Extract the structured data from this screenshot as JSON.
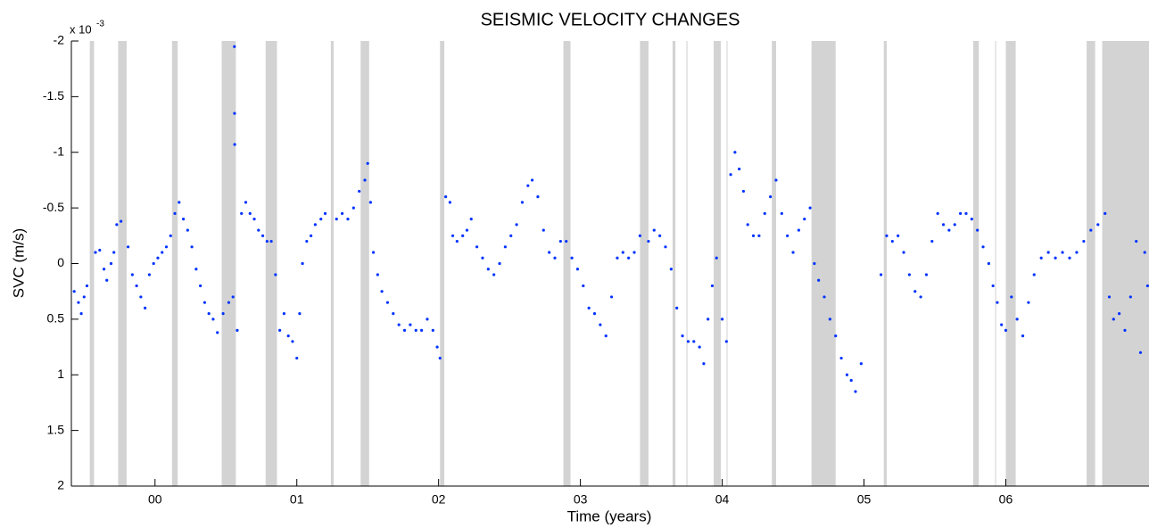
{
  "chart_data": {
    "type": "scatter",
    "title": "SEISMIC VELOCITY CHANGES",
    "x_label": "Time (years)",
    "y_label": "SVC (m/s)",
    "y_scale_label": {
      "base": "x 10",
      "exponent": "-3"
    },
    "color": "#0033ff",
    "gap_color": "#d3d3d3",
    "y_inverted": true,
    "xlim": [
      1999.41,
      2007.01
    ],
    "ylim": [
      -2,
      2
    ],
    "xticks": [
      {
        "value": 2000,
        "label": "00"
      },
      {
        "value": 2001,
        "label": "01"
      },
      {
        "value": 2002,
        "label": "02"
      },
      {
        "value": 2003,
        "label": "03"
      },
      {
        "value": 2004,
        "label": "04"
      },
      {
        "value": 2005,
        "label": "05"
      },
      {
        "value": 2006,
        "label": "06"
      }
    ],
    "yticks": [
      -2,
      -1.5,
      -1,
      -0.5,
      0,
      0.5,
      1,
      1.5,
      2
    ],
    "gaps": [
      [
        1999.54,
        1999.57
      ],
      [
        1999.74,
        1999.8
      ],
      [
        2000.12,
        2000.16
      ],
      [
        2000.47,
        2000.57
      ],
      [
        2000.78,
        2000.86
      ],
      [
        2001.24,
        2001.26
      ],
      [
        2001.45,
        2001.51
      ],
      [
        2002.01,
        2002.04
      ],
      [
        2002.88,
        2002.93
      ],
      [
        2003.42,
        2003.48
      ],
      [
        2003.65,
        2003.67
      ],
      [
        2003.748,
        2003.755
      ],
      [
        2003.94,
        2003.99
      ],
      [
        2004.031,
        2004.036
      ],
      [
        2004.35,
        2004.38
      ],
      [
        2004.63,
        2004.8
      ],
      [
        2005.14,
        2005.16
      ],
      [
        2005.77,
        2005.81
      ],
      [
        2005.925,
        2005.931
      ],
      [
        2006.0,
        2006.07
      ],
      [
        2006.57,
        2006.63
      ],
      [
        2006.68,
        2007.01
      ]
    ],
    "x": [
      1999.43,
      1999.46,
      1999.48,
      1999.5,
      1999.52,
      1999.58,
      1999.61,
      1999.64,
      1999.66,
      1999.69,
      1999.71,
      1999.73,
      1999.76,
      1999.81,
      1999.84,
      1999.87,
      1999.9,
      1999.93,
      1999.96,
      1999.99,
      2000.02,
      2000.05,
      2000.08,
      2000.11,
      2000.14,
      2000.17,
      2000.2,
      2000.23,
      2000.26,
      2000.29,
      2000.32,
      2000.35,
      2000.38,
      2000.41,
      2000.44,
      2000.48,
      2000.52,
      2000.55,
      2000.56,
      2000.561,
      2000.562,
      2000.58,
      2000.61,
      2000.64,
      2000.67,
      2000.7,
      2000.73,
      2000.76,
      2000.79,
      2000.82,
      2000.85,
      2000.88,
      2000.91,
      2000.94,
      2000.97,
      2001.0,
      2001.02,
      2001.04,
      2001.07,
      2001.1,
      2001.13,
      2001.17,
      2001.2,
      2001.28,
      2001.32,
      2001.36,
      2001.4,
      2001.44,
      2001.48,
      2001.5,
      2001.52,
      2001.54,
      2001.57,
      2001.6,
      2001.64,
      2001.68,
      2001.72,
      2001.76,
      2001.8,
      2001.84,
      2001.88,
      2001.92,
      2001.96,
      2001.99,
      2002.01,
      2002.05,
      2002.08,
      2002.1,
      2002.13,
      2002.17,
      2002.2,
      2002.23,
      2002.27,
      2002.31,
      2002.35,
      2002.39,
      2002.43,
      2002.47,
      2002.51,
      2002.55,
      2002.59,
      2002.63,
      2002.66,
      2002.7,
      2002.74,
      2002.78,
      2002.82,
      2002.86,
      2002.9,
      2002.94,
      2002.98,
      2003.02,
      2003.06,
      2003.1,
      2003.14,
      2003.18,
      2003.22,
      2003.26,
      2003.3,
      2003.34,
      2003.38,
      2003.42,
      2003.48,
      2003.52,
      2003.56,
      2003.6,
      2003.64,
      2003.68,
      2003.72,
      2003.76,
      2003.8,
      2003.84,
      2003.87,
      2003.9,
      2003.93,
      2003.96,
      2004.0,
      2004.03,
      2004.06,
      2004.09,
      2004.12,
      2004.15,
      2004.18,
      2004.22,
      2004.26,
      2004.3,
      2004.34,
      2004.38,
      2004.42,
      2004.46,
      2004.5,
      2004.54,
      2004.58,
      2004.62,
      2004.65,
      2004.68,
      2004.72,
      2004.76,
      2004.8,
      2004.84,
      2004.88,
      2004.91,
      2004.94,
      2004.98,
      2005.12,
      2005.16,
      2005.2,
      2005.24,
      2005.28,
      2005.32,
      2005.36,
      2005.4,
      2005.44,
      2005.48,
      2005.52,
      2005.56,
      2005.6,
      2005.64,
      2005.68,
      2005.72,
      2005.76,
      2005.8,
      2005.84,
      2005.88,
      2005.91,
      2005.94,
      2005.97,
      2006.0,
      2006.04,
      2006.08,
      2006.12,
      2006.16,
      2006.2,
      2006.25,
      2006.3,
      2006.35,
      2006.4,
      2006.45,
      2006.5,
      2006.55,
      2006.6,
      2006.65,
      2006.7,
      2006.73,
      2006.76,
      2006.8,
      2006.84,
      2006.88,
      2006.92,
      2006.95,
      2006.98,
      2007.0
    ],
    "values": [
      0.25,
      0.35,
      0.45,
      0.3,
      0.2,
      -0.1,
      -0.12,
      0.05,
      0.15,
      0.0,
      -0.1,
      -0.35,
      -0.38,
      -0.15,
      0.1,
      0.2,
      0.3,
      0.4,
      0.1,
      0.0,
      -0.05,
      -0.1,
      -0.15,
      -0.25,
      -0.45,
      -0.55,
      -0.4,
      -0.3,
      -0.15,
      0.05,
      0.2,
      0.35,
      0.45,
      0.5,
      0.62,
      0.45,
      0.35,
      0.3,
      -1.95,
      -1.35,
      -1.07,
      0.6,
      -0.45,
      -0.55,
      -0.45,
      -0.4,
      -0.3,
      -0.25,
      -0.2,
      -0.2,
      0.1,
      0.6,
      0.45,
      0.65,
      0.7,
      0.85,
      0.45,
      0.0,
      -0.2,
      -0.25,
      -0.35,
      -0.4,
      -0.45,
      -0.4,
      -0.45,
      -0.4,
      -0.5,
      -0.65,
      -0.75,
      -0.9,
      -0.55,
      -0.1,
      0.1,
      0.25,
      0.35,
      0.45,
      0.55,
      0.6,
      0.55,
      0.6,
      0.6,
      0.5,
      0.6,
      0.75,
      0.85,
      -0.6,
      -0.55,
      -0.25,
      -0.2,
      -0.25,
      -0.3,
      -0.4,
      -0.15,
      -0.05,
      0.05,
      0.1,
      0.0,
      -0.15,
      -0.25,
      -0.35,
      -0.55,
      -0.7,
      -0.75,
      -0.6,
      -0.3,
      -0.1,
      -0.05,
      -0.2,
      -0.2,
      -0.05,
      0.05,
      0.2,
      0.4,
      0.45,
      0.55,
      0.65,
      0.3,
      -0.05,
      -0.1,
      -0.05,
      -0.1,
      -0.25,
      -0.2,
      -0.3,
      -0.25,
      -0.15,
      0.05,
      0.4,
      0.65,
      0.7,
      0.7,
      0.75,
      0.9,
      0.5,
      0.2,
      -0.05,
      0.5,
      0.7,
      -0.8,
      -1.0,
      -0.85,
      -0.65,
      -0.35,
      -0.25,
      -0.25,
      -0.45,
      -0.6,
      -0.75,
      -0.45,
      -0.25,
      -0.1,
      -0.3,
      -0.4,
      -0.5,
      0.0,
      0.15,
      0.3,
      0.5,
      0.65,
      0.85,
      1.0,
      1.05,
      1.15,
      0.9,
      0.1,
      -0.25,
      -0.2,
      -0.25,
      -0.1,
      0.1,
      0.25,
      0.3,
      0.1,
      -0.2,
      -0.45,
      -0.35,
      -0.3,
      -0.35,
      -0.45,
      -0.45,
      -0.4,
      -0.3,
      -0.15,
      0.0,
      0.2,
      0.35,
      0.55,
      0.6,
      0.3,
      0.5,
      0.65,
      0.35,
      0.1,
      -0.05,
      -0.1,
      -0.05,
      -0.1,
      -0.05,
      -0.1,
      -0.2,
      -0.3,
      -0.35,
      -0.45,
      0.3,
      0.5,
      0.45,
      0.6,
      0.3,
      -0.2,
      0.8,
      -0.1,
      0.2
    ]
  }
}
